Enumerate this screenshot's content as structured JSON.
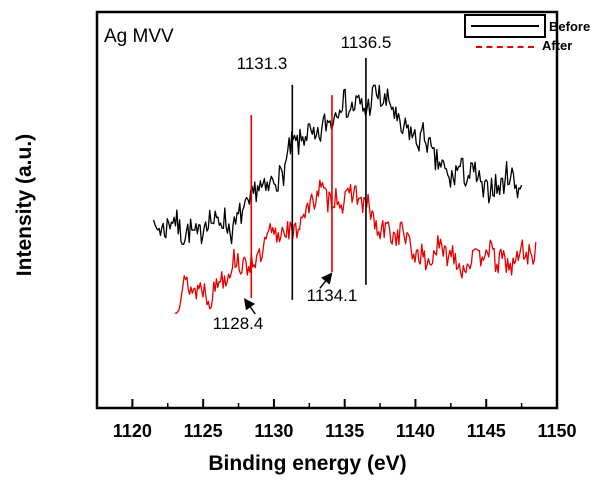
{
  "chart_data": {
    "type": "line",
    "plot_label": "Ag MVV",
    "xlabel": "Binding energy (eV)",
    "ylabel": "Intensity (a.u.)",
    "xlim": [
      1117.5,
      1150
    ],
    "xticks": [
      1120,
      1125,
      1130,
      1135,
      1140,
      1145,
      1150
    ],
    "x_minor_step": 2.5,
    "grid": false,
    "legend": {
      "position": "top-right",
      "entries": [
        {
          "label": "Before",
          "color": "#000000",
          "line_style": "solid"
        },
        {
          "label": "After",
          "color": "#e60000",
          "line_style": "dashed"
        }
      ]
    },
    "series": [
      {
        "name": "Before",
        "color": "#000000",
        "x_start": 1121.5,
        "x_end": 1147.5,
        "points": 270,
        "baseline": 0.45,
        "background_step": {
          "height": 0.115,
          "center": 1135,
          "width": 3
        },
        "peaks": [
          {
            "center": 1136.5,
            "height": 0.25,
            "sigma": 3.2
          },
          {
            "center": 1131.3,
            "height": 0.1,
            "sigma": 2.2
          }
        ],
        "noise": 0.035,
        "seed": 7
      },
      {
        "name": "After",
        "color": "#e60000",
        "x_start": 1123.0,
        "x_end": 1148.5,
        "points": 270,
        "baseline": 0.28,
        "background_step": {
          "height": 0.1,
          "center": 1133,
          "width": 3
        },
        "peaks": [
          {
            "center": 1134.1,
            "height": 0.2,
            "sigma": 3.0
          },
          {
            "center": 1128.4,
            "height": 0.05,
            "sigma": 2.0
          }
        ],
        "noise": 0.03,
        "seed": 13
      }
    ],
    "annotations": [
      {
        "label": "1131.3",
        "x": 1131.3,
        "color": "#000000",
        "line_top": 0.816,
        "line_bottom": 0.273,
        "label_placement": "above"
      },
      {
        "label": "1136.5",
        "x": 1136.5,
        "color": "#000000",
        "line_top": 0.884,
        "line_bottom": 0.311,
        "label_placement": "above"
      },
      {
        "label": "1128.4",
        "x": 1128.4,
        "color": "#e60000",
        "line_top": 0.74,
        "line_bottom": 0.278,
        "label_placement": "below-arrow",
        "arrow_dir": "left"
      },
      {
        "label": "1134.1",
        "x": 1134.1,
        "color": "#e60000",
        "line_top": 0.79,
        "line_bottom": 0.343,
        "label_placement": "below-arrow",
        "arrow_dir": "right"
      }
    ]
  }
}
